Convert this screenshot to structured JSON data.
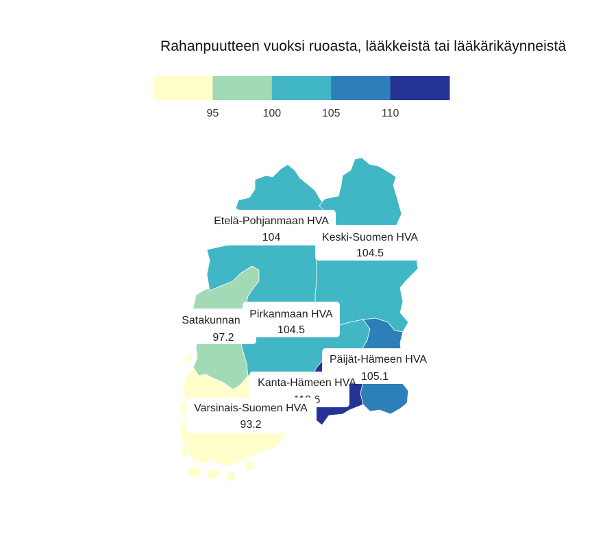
{
  "map": {
    "title": "Rahanpuutteen vuoksi ruoasta, lääkkeistä tai lääkärikäynneistä",
    "legend": {
      "colors": [
        "#ffffcc",
        "#a1dab4",
        "#41b6c4",
        "#2c7fb8",
        "#253494"
      ],
      "breaks": [
        "95",
        "100",
        "105",
        "110"
      ]
    },
    "regions": [
      {
        "id": "etela-pohjanmaa",
        "name": "Etelä-Pohjanmaan HVA",
        "value": "104",
        "color": "#41b6c4"
      },
      {
        "id": "keski-suomi",
        "name": "Keski-Suomen HVA",
        "value": "104.5",
        "color": "#41b6c4"
      },
      {
        "id": "satakunta",
        "name": "Satakunnan HVA",
        "value": "97.2",
        "color": "#a1dab4"
      },
      {
        "id": "pirkanmaa",
        "name": "Pirkanmaan HVA",
        "value": "104.5",
        "color": "#41b6c4"
      },
      {
        "id": "paijat-hame",
        "name": "Päijät-Hämeen HVA",
        "value": "105.1",
        "color": "#2c7fb8"
      },
      {
        "id": "kanta-hame",
        "name": "Kanta-Hämeen HVA",
        "value": "113.6",
        "color": "#253494"
      },
      {
        "id": "varsinais-suomi",
        "name": "Varsinais-Suomen HVA",
        "value": "93.2",
        "color": "#ffffcc"
      }
    ]
  }
}
